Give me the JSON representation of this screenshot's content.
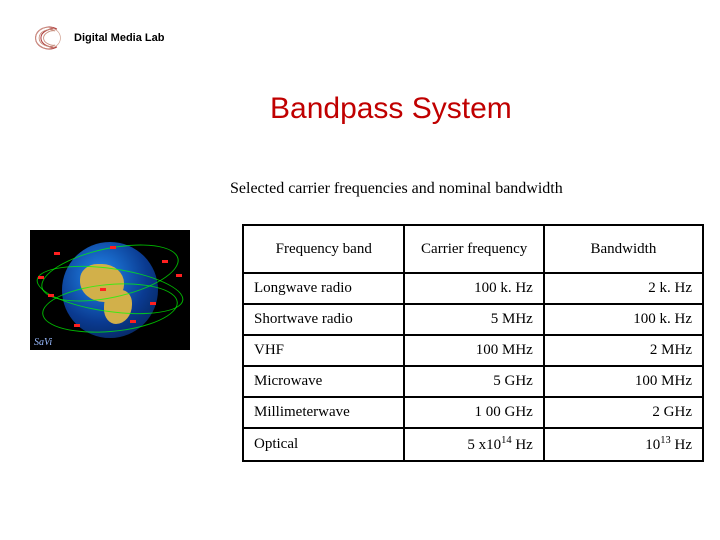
{
  "logo": {
    "text": "Digital Media Lab"
  },
  "title": "Bandpass System",
  "subtitle": "Selected carrier frequencies and nominal bandwidth",
  "globe": {
    "caption": "SaVi"
  },
  "table": {
    "columns": [
      "Frequency band",
      "Carrier frequency",
      "Bandwidth"
    ],
    "rows": [
      {
        "band": "Longwave radio",
        "carrier": "100  k. Hz",
        "bandwidth": "2 k. Hz"
      },
      {
        "band": "Shortwave radio",
        "carrier": "5  MHz",
        "bandwidth": "100 k. Hz"
      },
      {
        "band": "VHF",
        "carrier": "100 MHz",
        "bandwidth": "2 MHz"
      },
      {
        "band": "Microwave",
        "carrier": "5 GHz",
        "bandwidth": "100 MHz"
      },
      {
        "band": "Millimeterwave",
        "carrier": "1  00 GHz",
        "bandwidth": "2 GHz"
      },
      {
        "band": "Optical",
        "carrier": "5 x10^14 Hz",
        "bandwidth": "10^13 Hz"
      }
    ],
    "border_color": "#000000",
    "header_bg": "#ffffff",
    "font_family": "Georgia, serif",
    "font_size_pt": 11
  },
  "colors": {
    "title": "#c00000",
    "background": "#ffffff",
    "text": "#000000",
    "globe_bg": "#000000",
    "orbit": "#00ff00",
    "satellite": "#ff2020"
  }
}
